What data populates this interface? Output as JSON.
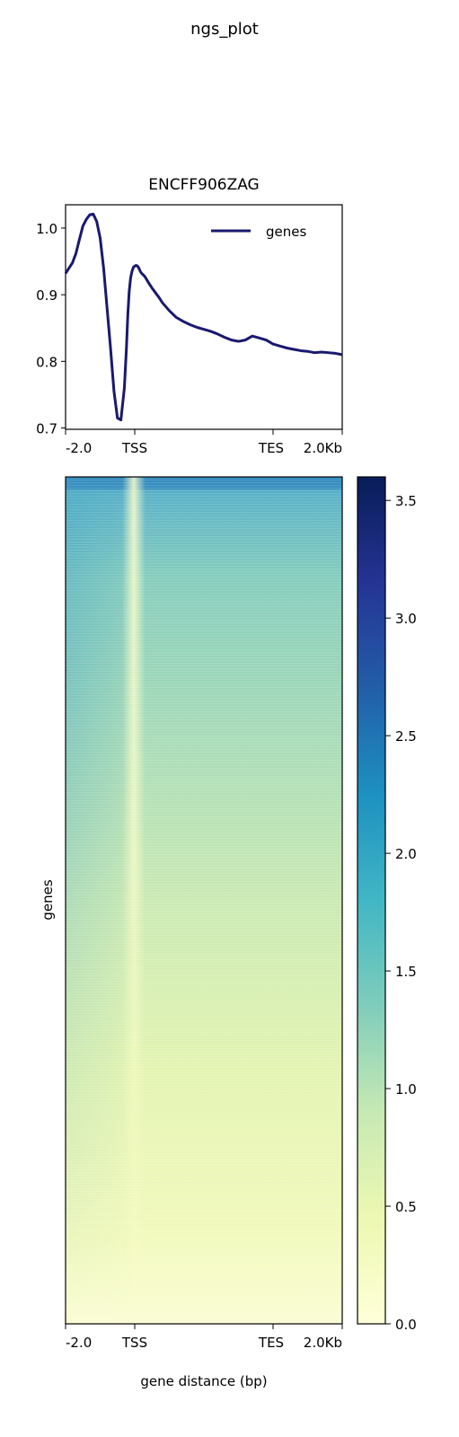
{
  "figure": {
    "suptitle": "ngs_plot"
  },
  "chart_data": [
    {
      "type": "line",
      "title": "ENCFF906ZAG",
      "xlabel": "",
      "ylabel": "",
      "x_ticks": [
        "-2.0",
        "TSS",
        "TES",
        "2.0Kb"
      ],
      "y_ticks": [
        "0.7",
        "0.8",
        "0.9",
        "1.0"
      ],
      "ylim": [
        0.698,
        1.035
      ],
      "xlim": [
        0,
        400
      ],
      "legend": {
        "placement": "upper-right",
        "entries": [
          "genes"
        ]
      },
      "series": [
        {
          "name": "genes",
          "color": "#191970",
          "x": [
            0,
            5,
            10,
            15,
            20,
            25,
            30,
            35,
            40,
            45,
            50,
            55,
            60,
            65,
            70,
            75,
            80,
            85,
            88,
            90,
            92,
            94,
            96,
            98,
            100,
            102,
            104,
            106,
            108,
            110,
            112,
            114,
            116,
            120,
            125,
            130,
            135,
            140,
            150,
            160,
            170,
            180,
            190,
            200,
            210,
            220,
            230,
            240,
            250,
            260,
            270,
            280,
            290,
            300,
            310,
            320,
            330,
            340,
            350,
            360,
            370,
            380,
            390,
            400
          ],
          "values": [
            0.932,
            0.94,
            0.948,
            0.962,
            0.983,
            1.003,
            1.013,
            1.02,
            1.021,
            1.01,
            0.985,
            0.94,
            0.88,
            0.82,
            0.755,
            0.715,
            0.712,
            0.76,
            0.82,
            0.87,
            0.905,
            0.925,
            0.935,
            0.941,
            0.943,
            0.944,
            0.943,
            0.94,
            0.935,
            0.932,
            0.93,
            0.928,
            0.925,
            0.918,
            0.91,
            0.903,
            0.896,
            0.888,
            0.876,
            0.866,
            0.86,
            0.855,
            0.851,
            0.848,
            0.845,
            0.841,
            0.836,
            0.832,
            0.83,
            0.832,
            0.838,
            0.835,
            0.832,
            0.826,
            0.823,
            0.82,
            0.818,
            0.816,
            0.815,
            0.813,
            0.814,
            0.813,
            0.812,
            0.81
          ]
        }
      ]
    },
    {
      "type": "heatmap",
      "title": "",
      "xlabel": "gene distance (bp)",
      "ylabel": "genes",
      "x_ticks": [
        "-2.0",
        "TSS",
        "TES",
        "2.0Kb"
      ],
      "colormap": "YlGnBu",
      "colorbar": {
        "min": 0.0,
        "max": 3.6,
        "ticks": [
          "0.0",
          "0.5",
          "1.0",
          "1.5",
          "2.0",
          "2.5",
          "3.0",
          "3.5"
        ]
      }
    }
  ]
}
